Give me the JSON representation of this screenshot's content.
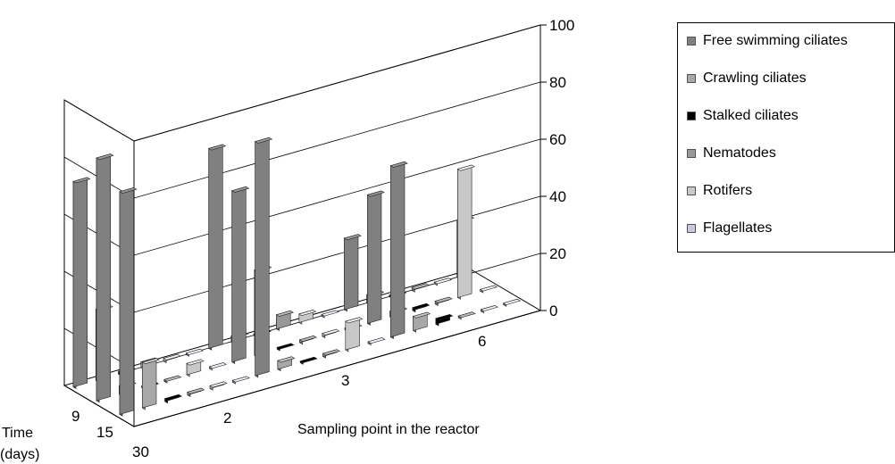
{
  "chart_data": {
    "type": "bar",
    "subtype": "3d-bar",
    "title": "",
    "xlabel": "Sampling point in the reactor",
    "ylabel": "",
    "zlabel": "Time (days)",
    "zlabel_lines": [
      "Time",
      "(days)"
    ],
    "ylim": [
      0,
      100
    ],
    "yticks": [
      "0",
      "20",
      "40",
      "60",
      "80",
      "100"
    ],
    "sampling_points": [
      "2",
      "3",
      "6"
    ],
    "times": [
      "9",
      "15",
      "30"
    ],
    "legend_position": "right",
    "grid": true,
    "series": [
      {
        "name": "Free swimming ciliates",
        "color": "#808080",
        "values": [
          [
            78,
            85,
            72
          ],
          [
            82,
            60,
            70
          ],
          [
            60,
            45,
            25
          ]
        ]
      },
      {
        "name": "Crawling ciliates",
        "color": "#a8a8a8",
        "values": [
          [
            16,
            3,
            25
          ],
          [
            3,
            30,
            2
          ],
          [
            5,
            2,
            3
          ]
        ]
      },
      {
        "name": "Stalked ciliates",
        "color": "#000000",
        "values": [
          [
            1,
            0,
            1
          ],
          [
            0,
            0,
            0
          ],
          [
            2,
            1,
            0
          ]
        ]
      },
      {
        "name": "Nematodes",
        "color": "#999999",
        "values": [
          [
            1,
            0,
            2
          ],
          [
            1,
            1,
            5
          ],
          [
            0,
            1,
            1
          ]
        ]
      },
      {
        "name": "Rotifers",
        "color": "#c8c8c8",
        "values": [
          [
            1,
            4,
            1
          ],
          [
            10,
            1,
            3
          ],
          [
            0,
            45,
            0
          ]
        ]
      },
      {
        "name": "Flagellates",
        "color": "#c8c8e0",
        "values": [
          [
            0,
            0,
            0
          ],
          [
            0,
            0,
            0
          ],
          [
            0,
            0,
            20
          ]
        ]
      }
    ]
  }
}
